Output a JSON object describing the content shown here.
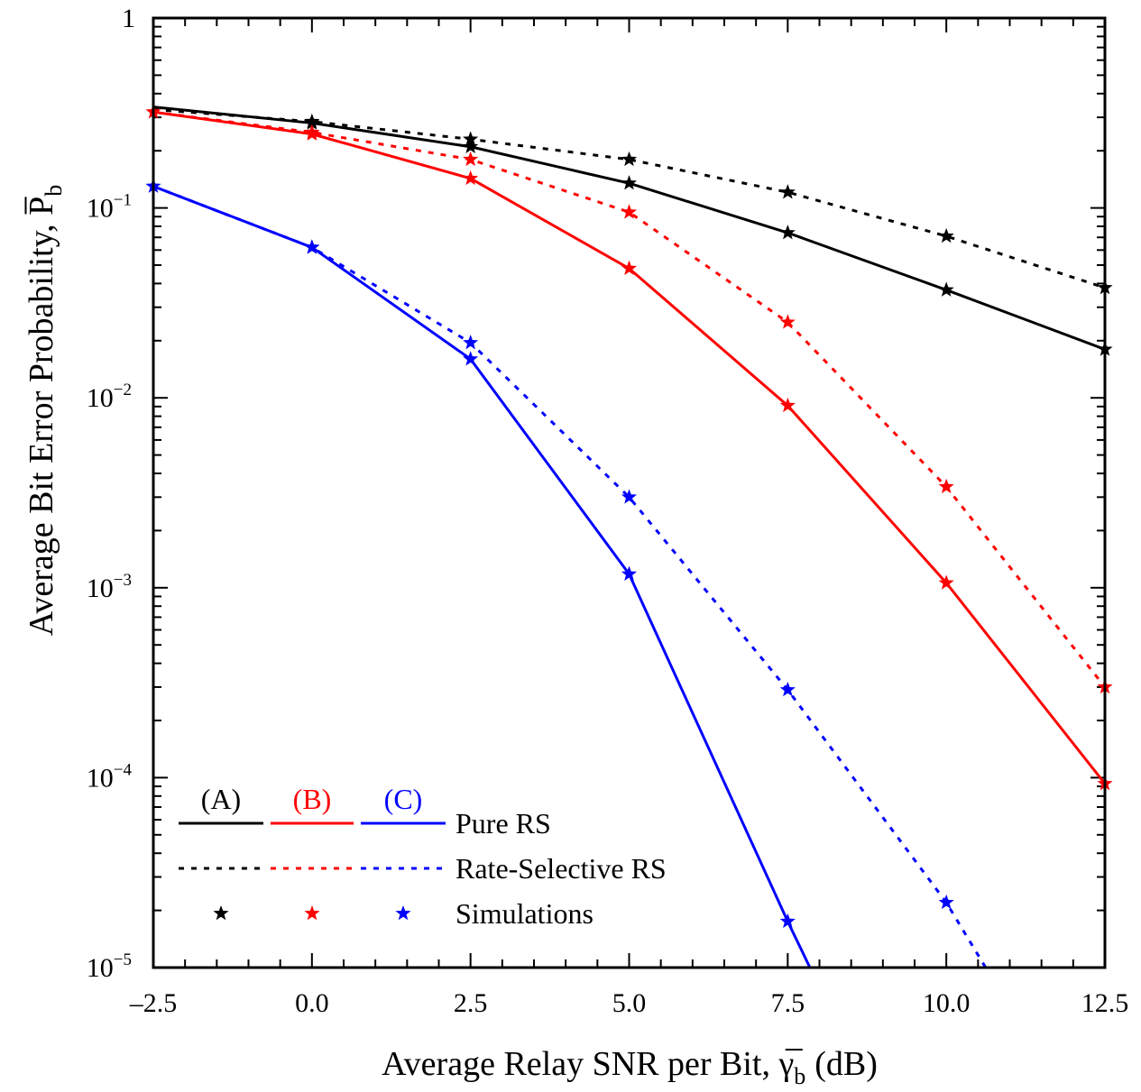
{
  "chart_data": {
    "type": "line",
    "xlabel": "Average Relay SNR per Bit, γ̅",
    "xlabel_sub": "b",
    "xlabel_unit": "(dB)",
    "ylabel": "Average Bit Error Probability, P̅",
    "ylabel_sub": "b",
    "xlim": [
      -2.5,
      12.5
    ],
    "ylim": [
      1e-05,
      1
    ],
    "yscale": "log",
    "x_ticks": [
      -2.5,
      0.0,
      2.5,
      5.0,
      7.5,
      10.0,
      12.5
    ],
    "x_tick_labels": [
      "–2.5",
      "0.0",
      "2.5",
      "5.0",
      "7.5",
      "10.0",
      "12.5"
    ],
    "y_ticks": [
      {
        "value": 1,
        "base": "1",
        "exp": ""
      },
      {
        "value": 0.1,
        "base": "10",
        "exp": "-1"
      },
      {
        "value": 0.01,
        "base": "10",
        "exp": "-2"
      },
      {
        "value": 0.001,
        "base": "10",
        "exp": "-3"
      },
      {
        "value": 0.0001,
        "base": "10",
        "exp": "-4"
      },
      {
        "value": 1e-05,
        "base": "10",
        "exp": "-5"
      }
    ],
    "colors": {
      "A": "#000000",
      "B": "#ff0000",
      "C": "#0000ff"
    },
    "series": [
      {
        "group": "A",
        "style": "solid",
        "x": [
          -2.5,
          0,
          2.5,
          5,
          7.5,
          10,
          12.5
        ],
        "y": [
          0.34,
          0.28,
          0.21,
          0.135,
          0.074,
          0.037,
          0.018
        ],
        "sim_x": [
          0,
          2.5,
          5,
          7.5,
          10,
          12.5
        ],
        "sim_y": [
          0.28,
          0.21,
          0.135,
          0.074,
          0.037,
          0.018
        ]
      },
      {
        "group": "A",
        "style": "dotted",
        "x": [
          -2.5,
          0,
          2.5,
          5,
          7.5,
          10,
          12.5
        ],
        "y": [
          0.33,
          0.285,
          0.23,
          0.18,
          0.121,
          0.071,
          0.038
        ],
        "sim_x": [
          0,
          2.5,
          5,
          7.5,
          10,
          12.5
        ],
        "sim_y": [
          0.285,
          0.23,
          0.18,
          0.121,
          0.071,
          0.038
        ]
      },
      {
        "group": "B",
        "style": "solid",
        "x": [
          -2.5,
          0,
          2.5,
          5,
          7.5,
          10,
          12.5
        ],
        "y": [
          0.32,
          0.245,
          0.143,
          0.048,
          0.0091,
          0.00106,
          9.3e-05
        ],
        "sim_x": [
          -2.5,
          0,
          2.5,
          5,
          7.5,
          10,
          12.5
        ],
        "sim_y": [
          0.32,
          0.245,
          0.143,
          0.048,
          0.0091,
          0.00106,
          9.3e-05
        ]
      },
      {
        "group": "B",
        "style": "dotted",
        "x": [
          -2.5,
          0,
          2.5,
          5,
          7.5,
          10,
          12.5
        ],
        "y": [
          0.32,
          0.25,
          0.18,
          0.095,
          0.025,
          0.0034,
          0.0003
        ],
        "sim_x": [
          0,
          2.5,
          5,
          7.5,
          10,
          12.5
        ],
        "sim_y": [
          0.25,
          0.18,
          0.095,
          0.025,
          0.0034,
          0.0003
        ]
      },
      {
        "group": "C",
        "style": "solid",
        "x": [
          -2.5,
          0,
          2.5,
          5,
          7.5,
          7.85
        ],
        "y": [
          0.13,
          0.062,
          0.016,
          0.00118,
          1.75e-05,
          1e-05
        ],
        "sim_x": [
          -2.5,
          0,
          2.5,
          5,
          7.5
        ],
        "sim_y": [
          0.13,
          0.062,
          0.016,
          0.00118,
          1.75e-05
        ]
      },
      {
        "group": "C",
        "style": "dotted",
        "x": [
          -2.5,
          0,
          2.5,
          5,
          7.5,
          10,
          10.62
        ],
        "y": [
          0.13,
          0.062,
          0.0195,
          0.003,
          0.00029,
          2.2e-05,
          1e-05
        ],
        "sim_x": [
          0,
          2.5,
          5,
          7.5,
          10
        ],
        "sim_y": [
          0.062,
          0.0195,
          0.003,
          0.00029,
          2.2e-05
        ]
      }
    ],
    "legend": {
      "placement": "bottom-left",
      "groups": [
        "(A)",
        "(B)",
        "(C)"
      ],
      "rows": [
        "Pure RS",
        "Rate-Selective RS",
        "Simulations"
      ]
    }
  }
}
